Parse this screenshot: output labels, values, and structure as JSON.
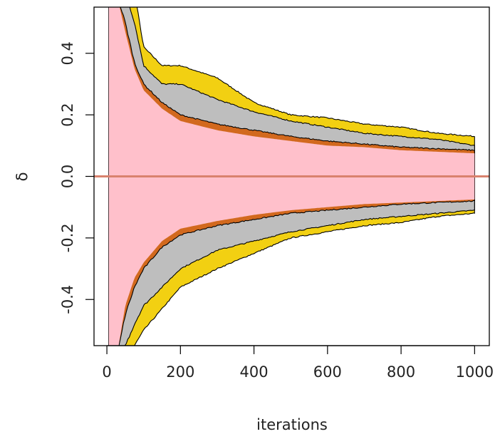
{
  "chart_data": {
    "type": "area",
    "title": "",
    "xlabel": "iterations",
    "ylabel": "δ",
    "xlim": [
      -35,
      1040
    ],
    "ylim": [
      -0.55,
      0.55
    ],
    "x_ticks": [
      {
        "value": 0,
        "label": "0"
      },
      {
        "value": 200,
        "label": "200"
      },
      {
        "value": 400,
        "label": "400"
      },
      {
        "value": 600,
        "label": "600"
      },
      {
        "value": 800,
        "label": "800"
      },
      {
        "value": 1000,
        "label": "1000"
      }
    ],
    "y_ticks": [
      {
        "value": -0.4,
        "label": "-0.4"
      },
      {
        "value": -0.2,
        "label": "-0.2"
      },
      {
        "value": 0.0,
        "label": "0.0"
      },
      {
        "value": 0.2,
        "label": "0.2"
      },
      {
        "value": 0.4,
        "label": "0.4"
      }
    ],
    "reference_line": {
      "y": 0,
      "color": "#d9826e"
    },
    "x": [
      5,
      25,
      50,
      75,
      100,
      150,
      200,
      300,
      400,
      500,
      600,
      700,
      800,
      900,
      1000
    ],
    "series": [
      {
        "color": "#f2d012",
        "upper": [
          0.6,
          0.6,
          0.6,
          0.6,
          0.42,
          0.36,
          0.36,
          0.32,
          0.24,
          0.2,
          0.19,
          0.17,
          0.16,
          0.14,
          0.13
        ],
        "lower": [
          -0.6,
          -0.6,
          -0.6,
          -0.55,
          -0.5,
          -0.43,
          -0.36,
          -0.3,
          -0.25,
          -0.2,
          -0.18,
          -0.16,
          -0.15,
          -0.13,
          -0.12
        ]
      },
      {
        "color": "#bebebe",
        "upper": [
          0.6,
          0.6,
          0.6,
          0.5,
          0.36,
          0.3,
          0.3,
          0.25,
          0.21,
          0.18,
          0.16,
          0.14,
          0.13,
          0.12,
          0.1
        ],
        "lower": [
          -0.6,
          -0.6,
          -0.55,
          -0.48,
          -0.42,
          -0.36,
          -0.3,
          -0.24,
          -0.21,
          -0.18,
          -0.16,
          -0.14,
          -0.13,
          -0.12,
          -0.11
        ]
      },
      {
        "color": "#d2691e",
        "upper": [
          0.6,
          0.6,
          0.5,
          0.37,
          0.3,
          0.24,
          0.2,
          0.17,
          0.15,
          0.13,
          0.115,
          0.105,
          0.095,
          0.09,
          0.085
        ],
        "lower": [
          -0.6,
          -0.6,
          -0.45,
          -0.36,
          -0.3,
          -0.23,
          -0.19,
          -0.16,
          -0.14,
          -0.12,
          -0.11,
          -0.1,
          -0.09,
          -0.085,
          -0.08
        ]
      },
      {
        "color": "#ffc0cb",
        "upper": [
          0.6,
          0.6,
          0.47,
          0.35,
          0.28,
          0.22,
          0.18,
          0.15,
          0.13,
          0.115,
          0.1,
          0.095,
          0.085,
          0.08,
          0.075
        ],
        "lower": [
          -0.6,
          -0.6,
          -0.42,
          -0.33,
          -0.28,
          -0.21,
          -0.17,
          -0.145,
          -0.125,
          -0.11,
          -0.1,
          -0.09,
          -0.085,
          -0.08,
          -0.075
        ]
      }
    ]
  }
}
